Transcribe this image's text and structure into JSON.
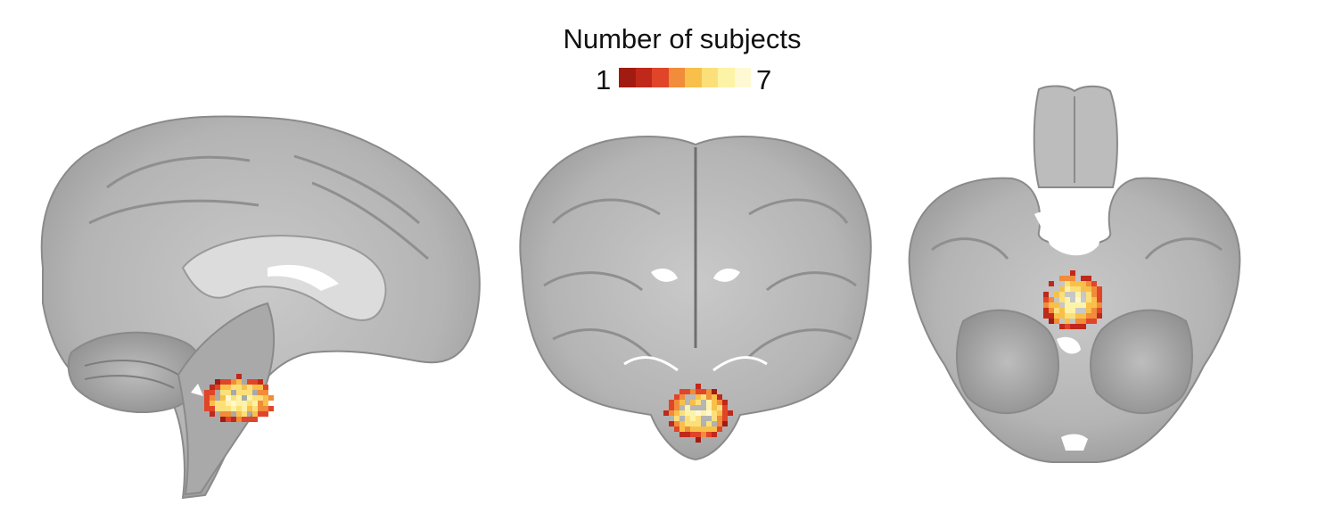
{
  "legend": {
    "title": "Number of subjects",
    "min_label": "1",
    "max_label": "7",
    "colors": [
      "#a11b12",
      "#c0281a",
      "#e0452a",
      "#f08c3a",
      "#f8c04a",
      "#fbe07a",
      "#fdf3a6",
      "#fef9d2"
    ]
  },
  "views": [
    {
      "name": "sagittal",
      "overlay_levels": [
        1,
        2,
        3,
        4,
        5,
        6,
        7
      ]
    },
    {
      "name": "coronal",
      "overlay_levels": [
        1,
        2,
        3,
        4,
        5,
        6,
        7
      ]
    },
    {
      "name": "axial",
      "overlay_levels": [
        1,
        2,
        3,
        4,
        5,
        6,
        7
      ]
    }
  ]
}
